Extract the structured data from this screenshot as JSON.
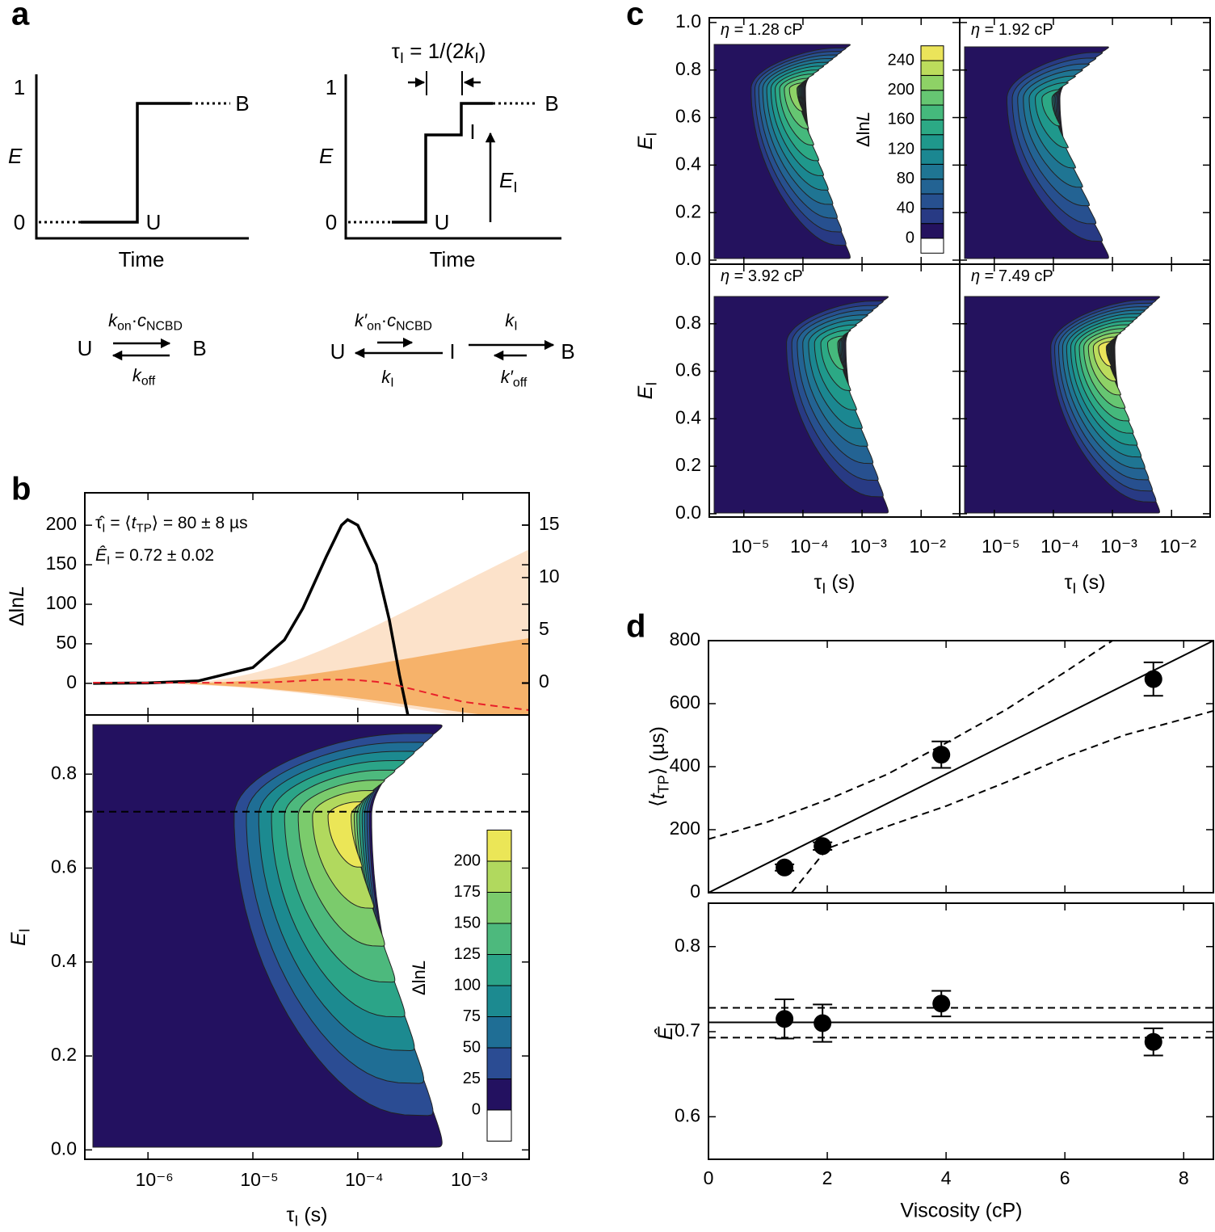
{
  "panel_labels": [
    "a",
    "b",
    "c",
    "d"
  ],
  "diagram": {
    "left": {
      "y_label": [
        {
          "i": "E"
        }
      ],
      "y_ticks": [
        "1",
        "0"
      ],
      "states": [
        "U",
        "B"
      ],
      "x_label": "Time"
    },
    "right": {
      "y_label": [
        {
          "i": "E"
        }
      ],
      "y_ticks": [
        "1",
        "0"
      ],
      "states": [
        "U",
        "I",
        "B"
      ],
      "x_label": "Time",
      "interval": [
        "τ",
        {
          "sub": "I"
        },
        " = 1/(2",
        {
          "i": "k"
        },
        {
          "sub": "I"
        },
        ")"
      ],
      "height": [
        {
          "i": "E"
        },
        {
          "sub": "I"
        }
      ]
    },
    "scheme_left": {
      "states": [
        "U",
        "B"
      ],
      "forward": [
        {
          "i": "k"
        },
        {
          "sub": "on"
        },
        "·",
        {
          "i": "c"
        },
        {
          "sub": "NCBD"
        }
      ],
      "backward": [
        {
          "i": "k"
        },
        {
          "sub": "off"
        }
      ]
    },
    "scheme_right": {
      "states": [
        "U",
        "I",
        "B"
      ],
      "rates": [
        [
          {
            "i": "k′"
          },
          {
            "sub": "on"
          },
          "·",
          {
            "i": "c"
          },
          {
            "sub": "NCBD"
          }
        ],
        [
          {
            "i": "k"
          },
          {
            "sub": "I"
          }
        ],
        [
          {
            "i": "k"
          },
          {
            "sub": "I"
          }
        ],
        [
          {
            "i": "k′"
          },
          {
            "sub": "off"
          }
        ]
      ]
    }
  },
  "chart_data": [
    {
      "type": "line",
      "log_x": true,
      "ylabel": [
        "Δln",
        {
          "i": "L"
        }
      ],
      "annotations": [
        [
          "τ̂",
          {
            "sub": "I"
          },
          " = ⟨",
          {
            "i": "t"
          },
          {
            "sub": "TP"
          },
          "⟩ = 80 ± 8 µs"
        ],
        [
          {
            "i": "Ê"
          },
          {
            "sub": "I"
          },
          " = 0.72 ± 0.02"
        ]
      ],
      "xlim": [
        2.5e-07,
        0.0043
      ],
      "xticks": [
        1e-06,
        1e-05,
        0.0001,
        0.001
      ],
      "ylim": [
        -40,
        241
      ],
      "yticks": [
        0,
        50,
        100,
        150,
        200
      ],
      "y2lim": [
        -3.06,
        18.06
      ],
      "y2ticks": [
        0,
        5,
        10,
        15
      ],
      "y2color": "#f07f12",
      "x": [
        3e-07,
        1e-06,
        3e-06,
        1e-05,
        2e-05,
        3e-05,
        5e-05,
        7e-05,
        8e-05,
        0.0001,
        0.00015,
        0.0002,
        0.00025,
        0.0003,
        0.001,
        0.002,
        0.0043
      ],
      "series": [
        {
          "color": "#000000",
          "values": [
            0,
            0.5,
            3,
            20,
            55,
            95,
            160,
            200,
            207,
            200,
            150,
            80,
            10,
            -40,
            null,
            null,
            null
          ]
        },
        {
          "color": "#e8202a",
          "axis": "y2",
          "dash": true,
          "values": [
            0,
            0,
            0,
            0,
            0.1,
            0.2,
            0.3,
            0.3,
            0.3,
            0.25,
            0.1,
            -0.1,
            -0.3,
            -0.5,
            -1.8,
            -2.2,
            -2.6
          ]
        }
      ]
    },
    {
      "type": "contour",
      "log_x": true,
      "xlim": [
        2.5e-07,
        0.0043
      ],
      "xticks": [
        {
          "value": 1e-06,
          "label": "10⁻⁶"
        },
        {
          "value": 1e-05,
          "label": "10⁻⁵"
        },
        {
          "value": 0.0001,
          "label": "10⁻⁴"
        },
        {
          "value": 0.001,
          "label": "10⁻³"
        }
      ],
      "ylim": [
        -0.02,
        0.926
      ],
      "yticks": [
        {
          "value": 0,
          "label": "0.0"
        },
        0.2,
        0.4,
        0.6,
        0.8
      ],
      "xlabel": [
        "τ",
        {
          "sub": "I"
        },
        " (s)"
      ],
      "ylabel": [
        {
          "i": "E"
        },
        {
          "sub": "I"
        }
      ],
      "hline": 0.72,
      "colorbar": {
        "label": [
          "Δln",
          {
            "i": "L"
          }
        ],
        "levels": [
          0,
          25,
          50,
          75,
          100,
          125,
          150,
          175,
          200
        ],
        "colors": [
          "#231160",
          "#2b4c93",
          "#1f6e95",
          "#1c8a90",
          "#2ba488",
          "#4db97d",
          "#7bcb6c",
          "#b1d95e",
          "#ebe657"
        ]
      }
    },
    {
      "type": "contour",
      "log_x": true,
      "xlim": [
        2.6e-06,
        0.045
      ],
      "xticks": [
        {
          "value": 1e-05,
          "label": "10⁻⁵"
        },
        {
          "value": 0.0001,
          "label": "10⁻⁴"
        },
        {
          "value": 0.001,
          "label": "10⁻³"
        },
        {
          "value": 0.01,
          "label": "10⁻²"
        }
      ],
      "xlabel": [
        "τ",
        {
          "sub": "I"
        },
        " (s)"
      ],
      "ylabel": [
        {
          "i": "E"
        },
        {
          "sub": "I"
        }
      ],
      "rows": [
        {
          "ylim": [
            -0.017,
            1.02
          ],
          "yticks": [
            {
              "value": 0,
              "label": "0.0"
            },
            0.2,
            0.4,
            0.6,
            0.8,
            {
              "value": 1,
              "label": "1.0"
            }
          ]
        },
        {
          "ylim": [
            -0.014,
            1.051
          ],
          "yticks": [
            {
              "value": 0,
              "label": "0.0"
            },
            0.2,
            0.4,
            0.6,
            0.8
          ]
        }
      ],
      "panels": [
        {
          "title": [
            {
              "i": "η"
            },
            " = 1.28 cP"
          ]
        },
        {
          "title": [
            {
              "i": "η"
            },
            " = 1.92 cP"
          ]
        },
        {
          "title": [
            {
              "i": "η"
            },
            " = 3.92 cP"
          ]
        },
        {
          "title": [
            {
              "i": "η"
            },
            " = 7.49 cP"
          ]
        }
      ],
      "colorbar": {
        "label": [
          "Δln",
          {
            "i": "L"
          }
        ],
        "levels": [
          0,
          20,
          40,
          60,
          80,
          100,
          120,
          140,
          160,
          180,
          200,
          220,
          240
        ],
        "ticks": [
          0,
          40,
          80,
          120,
          160,
          200,
          240
        ],
        "colors": [
          "#24125e",
          "#283a84",
          "#27508f",
          "#236393",
          "#1f7593",
          "#1b8791",
          "#1f988c",
          "#2ca985",
          "#45b97c",
          "#66c672",
          "#8ed266",
          "#bcdc5c",
          "#ebe45a"
        ]
      }
    },
    {
      "type": "scatter",
      "color": "#000000",
      "x": [
        1.28,
        1.92,
        3.92,
        7.49
      ],
      "values": [
        80,
        148,
        438,
        678
      ],
      "errors": [
        10,
        12,
        42,
        53
      ],
      "xlim": [
        0,
        8.5
      ],
      "xticks": [
        0,
        2,
        4,
        6,
        8
      ],
      "ylim": [
        0,
        800
      ],
      "yticks": [
        0,
        200,
        400,
        600,
        800
      ],
      "ylabel": [
        "⟨",
        {
          "i": "t"
        },
        {
          "sub": "TP"
        },
        "⟩ (µs)"
      ],
      "lines": [
        {
          "x": [
            0,
            8.5
          ],
          "values": [
            0,
            800
          ]
        },
        {
          "x": [
            0,
            1,
            2,
            3,
            4,
            5,
            6,
            6.8
          ],
          "values": [
            170,
            225,
            295,
            375,
            475,
            580,
            700,
            800
          ],
          "dash": true
        },
        {
          "x": [
            1.4,
            2,
            3,
            4,
            5,
            6,
            7,
            8.5
          ],
          "values": [
            0,
            140,
            210,
            275,
            350,
            430,
            500,
            577
          ],
          "dash": true
        }
      ]
    },
    {
      "type": "scatter",
      "color": "#000000",
      "x": [
        1.28,
        1.92,
        3.92,
        7.49
      ],
      "values": [
        0.715,
        0.71,
        0.733,
        0.688
      ],
      "errors": [
        0.023,
        0.022,
        0.015,
        0.016
      ],
      "xlim": [
        0,
        8.5
      ],
      "xticks": [
        0,
        2,
        4,
        6,
        8
      ],
      "ylim": [
        0.55,
        0.851
      ],
      "yticks": [
        0.6,
        0.7,
        0.8
      ],
      "xlabel": "Viscosity (cP)",
      "ylabel": [
        {
          "i": "Ê"
        },
        {
          "sub": "I"
        }
      ],
      "lines": [
        {
          "x": [
            0,
            8.5
          ],
          "values": [
            0.711,
            0.711
          ]
        },
        {
          "x": [
            0,
            8.5
          ],
          "values": [
            0.728,
            0.728
          ],
          "dash": true
        },
        {
          "x": [
            0,
            8.5
          ],
          "values": [
            0.693,
            0.693
          ],
          "dash": true
        }
      ]
    }
  ]
}
